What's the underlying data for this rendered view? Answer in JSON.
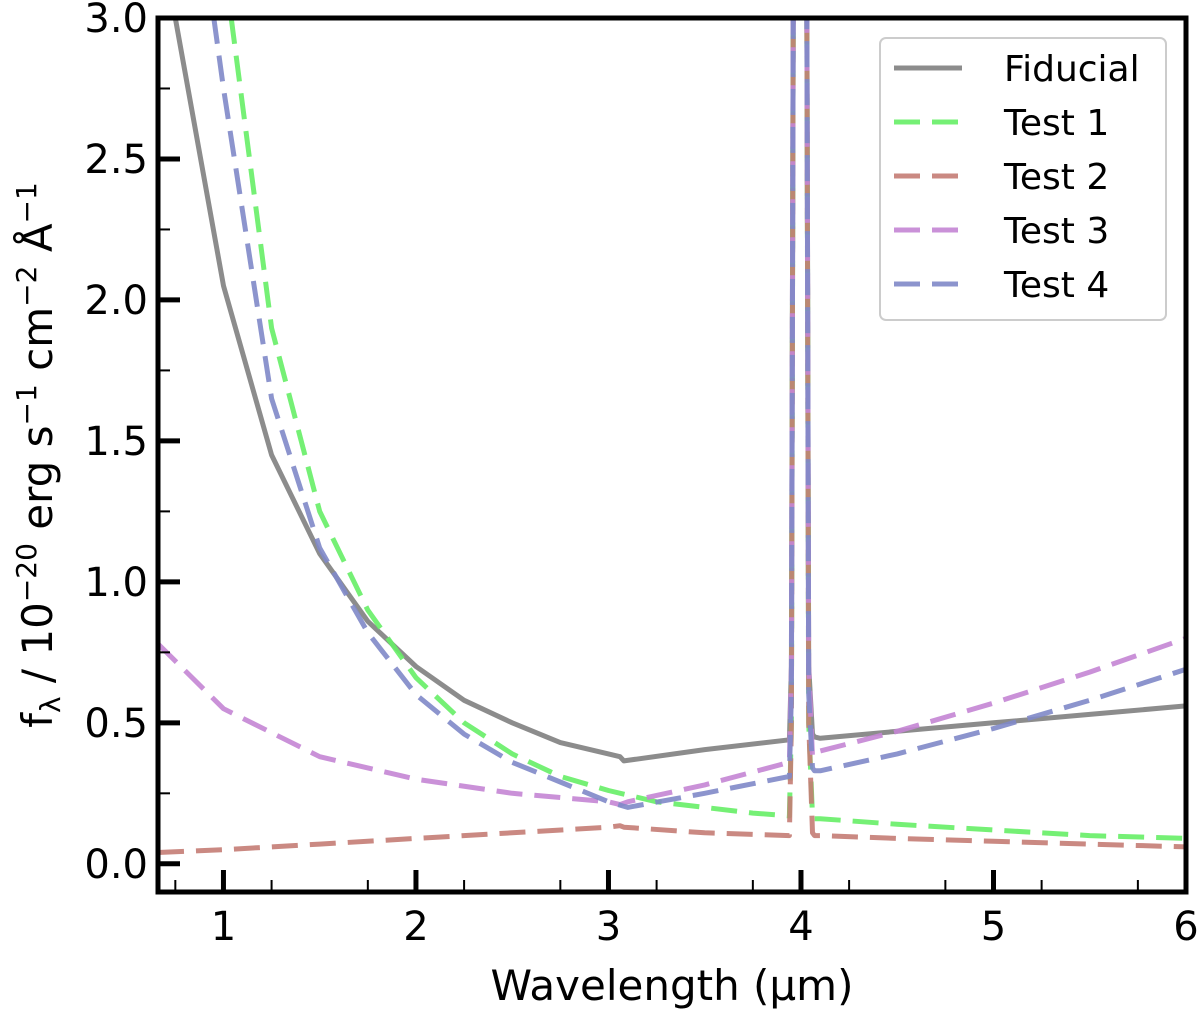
{
  "chart_data": {
    "type": "line",
    "xlabel": "Wavelength (μm)",
    "ylabel": {
      "prefix": "f",
      "prefix_sub": "λ",
      "mid": " / 10",
      "exp1": "−20",
      "erg": " erg s",
      "exp2": "−1",
      "cm": " cm",
      "exp3": "−2",
      "ang": " Å",
      "exp4": "−1"
    },
    "xlim": [
      0.66,
      6.0
    ],
    "ylim": [
      -0.1,
      3.0
    ],
    "xticks": [
      1,
      2,
      3,
      4,
      5,
      6
    ],
    "xtick_labels": [
      "1",
      "2",
      "3",
      "4",
      "5",
      "6"
    ],
    "yticks": [
      0.0,
      0.5,
      1.0,
      1.5,
      2.0,
      2.5,
      3.0
    ],
    "ytick_labels": [
      "0.0",
      "0.5",
      "1.0",
      "1.5",
      "2.0",
      "2.5",
      "3.0"
    ],
    "grid": false,
    "legend_position": "top-right",
    "series": [
      {
        "name": "Fiducial",
        "color": "#808080",
        "style": "solid",
        "x": [
          0.75,
          1.0,
          1.25,
          1.5,
          1.75,
          2.0,
          2.25,
          2.5,
          2.75,
          3.0,
          3.06,
          3.08,
          3.5,
          3.94,
          3.95,
          3.96,
          4.03,
          4.04,
          4.06,
          4.07,
          4.1,
          4.5,
          5.0,
          5.5,
          6.0
        ],
        "y": [
          3.0,
          2.05,
          1.45,
          1.1,
          0.86,
          0.7,
          0.58,
          0.5,
          0.43,
          0.39,
          0.38,
          0.365,
          0.405,
          0.44,
          0.7,
          3.1,
          3.1,
          0.7,
          0.46,
          0.45,
          0.445,
          0.47,
          0.5,
          0.53,
          0.56
        ]
      },
      {
        "name": "Test 1",
        "color": "#66ee66",
        "style": "dashed",
        "x": [
          1.04,
          1.25,
          1.5,
          1.75,
          2.0,
          2.25,
          2.5,
          2.75,
          3.0,
          3.25,
          3.5,
          3.75,
          3.94,
          3.95,
          3.96,
          4.03,
          4.04,
          4.06,
          4.07,
          4.1,
          4.5,
          5.0,
          5.5,
          6.0
        ],
        "y": [
          3.0,
          1.9,
          1.25,
          0.9,
          0.66,
          0.5,
          0.39,
          0.31,
          0.26,
          0.22,
          0.2,
          0.18,
          0.17,
          0.5,
          3.1,
          3.1,
          0.5,
          0.17,
          0.16,
          0.16,
          0.14,
          0.12,
          0.1,
          0.09
        ]
      },
      {
        "name": "Test 2",
        "color": "#c47c74",
        "style": "dashed",
        "x": [
          0.66,
          1.0,
          1.5,
          2.0,
          2.5,
          3.0,
          3.06,
          3.08,
          3.5,
          3.94,
          3.95,
          3.96,
          4.03,
          4.04,
          4.06,
          4.07,
          4.1,
          4.5,
          5.0,
          5.5,
          6.0
        ],
        "y": [
          0.04,
          0.05,
          0.07,
          0.09,
          0.11,
          0.13,
          0.135,
          0.13,
          0.11,
          0.1,
          0.5,
          3.1,
          3.1,
          0.5,
          0.11,
          0.1,
          0.1,
          0.09,
          0.08,
          0.07,
          0.06
        ]
      },
      {
        "name": "Test 3",
        "color": "#c485d4",
        "style": "dashed",
        "x": [
          0.66,
          1.0,
          1.5,
          2.0,
          2.5,
          3.0,
          3.06,
          3.1,
          3.5,
          3.94,
          3.95,
          3.96,
          4.03,
          4.04,
          4.06,
          4.07,
          4.1,
          4.5,
          5.0,
          5.5,
          6.0
        ],
        "y": [
          0.78,
          0.55,
          0.38,
          0.3,
          0.25,
          0.22,
          0.21,
          0.22,
          0.28,
          0.36,
          0.7,
          3.1,
          3.1,
          0.7,
          0.38,
          0.39,
          0.4,
          0.47,
          0.57,
          0.68,
          0.8
        ]
      },
      {
        "name": "Test 4",
        "color": "#8088c8",
        "style": "dashed",
        "x": [
          0.95,
          1.0,
          1.25,
          1.5,
          1.75,
          2.0,
          2.25,
          2.5,
          2.75,
          3.0,
          3.1,
          3.5,
          3.94,
          3.95,
          3.96,
          4.03,
          4.04,
          4.06,
          4.07,
          4.1,
          4.5,
          5.0,
          5.5,
          6.0
        ],
        "y": [
          3.0,
          2.75,
          1.65,
          1.12,
          0.82,
          0.6,
          0.46,
          0.36,
          0.29,
          0.22,
          0.2,
          0.25,
          0.31,
          0.6,
          3.1,
          3.1,
          0.6,
          0.34,
          0.33,
          0.33,
          0.39,
          0.48,
          0.58,
          0.69
        ]
      }
    ]
  }
}
